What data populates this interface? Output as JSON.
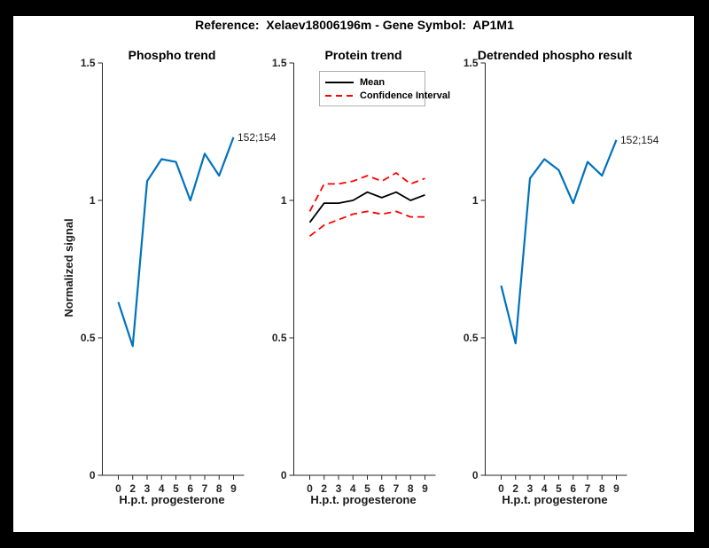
{
  "figure": {
    "title": "Reference:  Xelaev18006196m - Gene Symbol:  AP1M1",
    "background_color": "#000000",
    "figure_color": "#ffffff",
    "accent_blue": "#0072BD",
    "accent_red": "#ff0000"
  },
  "chart_data": [
    {
      "type": "line",
      "title": "Phospho trend",
      "xlabel": "H.p.t. progesterone",
      "ylabel": "Normalized signal",
      "x_tick_labels": [
        "0",
        "2",
        "3",
        "4",
        "5",
        "6",
        "7",
        "8",
        "9"
      ],
      "y_ticks": [
        0,
        0.5,
        1,
        1.5
      ],
      "ylim": [
        0,
        1.5
      ],
      "grid": false,
      "annotation": "152;154",
      "series": [
        {
          "name": "phospho-signal",
          "color": "#0072BD",
          "style": "solid",
          "width": 2.2,
          "values": [
            0.63,
            0.47,
            1.07,
            1.15,
            1.14,
            1.0,
            1.17,
            1.09,
            1.23
          ]
        }
      ]
    },
    {
      "type": "line",
      "title": "Protein trend",
      "xlabel": "H.p.t. progesterone",
      "ylabel": "",
      "x_tick_labels": [
        "0",
        "2",
        "3",
        "4",
        "5",
        "6",
        "7",
        "8",
        "9"
      ],
      "y_ticks": [
        0,
        0.5,
        1,
        1.5
      ],
      "ylim": [
        0,
        1.5
      ],
      "grid": false,
      "legend": [
        "Mean",
        "Confidence Interval"
      ],
      "legend_position": "top-left",
      "series": [
        {
          "name": "mean",
          "color": "#000000",
          "style": "solid",
          "width": 1.8,
          "values": [
            0.92,
            0.99,
            0.99,
            1.0,
            1.03,
            1.01,
            1.03,
            1.0,
            1.02
          ]
        },
        {
          "name": "confidence-upper",
          "color": "#ff0000",
          "style": "dashed",
          "width": 1.8,
          "values": [
            0.96,
            1.06,
            1.06,
            1.07,
            1.09,
            1.07,
            1.1,
            1.06,
            1.08
          ]
        },
        {
          "name": "confidence-lower",
          "color": "#ff0000",
          "style": "dashed",
          "width": 1.8,
          "values": [
            0.87,
            0.91,
            0.93,
            0.95,
            0.96,
            0.95,
            0.96,
            0.94,
            0.94
          ]
        }
      ]
    },
    {
      "type": "line",
      "title": "Detrended phospho result",
      "xlabel": "H.p.t. progesterone",
      "ylabel": "",
      "x_tick_labels": [
        "0",
        "2",
        "3",
        "4",
        "5",
        "6",
        "7",
        "8",
        "9"
      ],
      "y_ticks": [
        0,
        0.5,
        1,
        1.5
      ],
      "ylim": [
        0,
        1.5
      ],
      "grid": false,
      "annotation": "152;154",
      "series": [
        {
          "name": "detrended-phospho-signal",
          "color": "#0072BD",
          "style": "solid",
          "width": 2.2,
          "values": [
            0.69,
            0.48,
            1.08,
            1.15,
            1.11,
            0.99,
            1.14,
            1.09,
            1.22
          ]
        }
      ]
    }
  ]
}
